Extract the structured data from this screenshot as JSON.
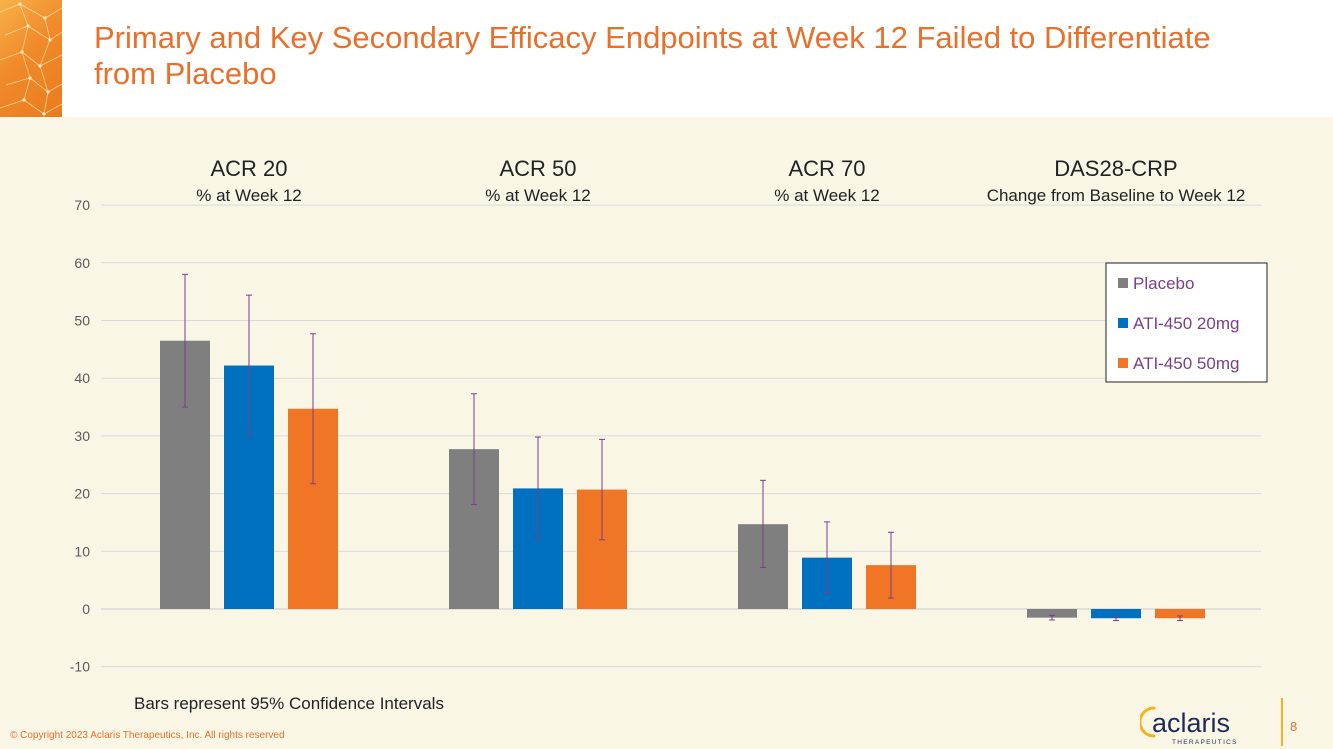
{
  "slide": {
    "title": "Primary and Key Secondary Efficacy Endpoints at Week 12 Failed to Differentiate from Placebo",
    "footnote": "Bars represent 95% Confidence Intervals",
    "copyright": "© Copyright 2023 Aclaris Therapeutics, Inc. All rights reserved",
    "page_number": "8",
    "logo": {
      "name": "aclaris",
      "tagline": "THERAPEUTICS"
    }
  },
  "colors": {
    "title": "#e8702a",
    "placebo": "#7f7f7f",
    "ati_20mg": "#0070c0",
    "ati_50mg": "#f07524",
    "error_bar": "#7b3f8c",
    "legend_text": "#7b3f8c",
    "gridline": "#d9d9d9",
    "background": "#faf6e6"
  },
  "chart_data": {
    "type": "bar",
    "categories": [
      {
        "title": "ACR 20",
        "subtitle": "% at Week 12"
      },
      {
        "title": "ACR 50",
        "subtitle": "% at Week 12"
      },
      {
        "title": "ACR 70",
        "subtitle": "% at Week 12"
      },
      {
        "title": "DAS28-CRP",
        "subtitle": "Change from Baseline to Week 12"
      }
    ],
    "series": [
      {
        "name": "Placebo",
        "color": "#7f7f7f",
        "values": [
          46.5,
          27.7,
          14.7,
          -1.5
        ],
        "ci_low": [
          35.0,
          18.1,
          7.2,
          -1.9
        ],
        "ci_high": [
          58.0,
          37.3,
          22.3,
          -1.1
        ]
      },
      {
        "name": "ATI-450 20mg",
        "color": "#0070c0",
        "values": [
          42.2,
          20.9,
          8.9,
          -1.6
        ],
        "ci_low": [
          30.0,
          12.0,
          2.7,
          -2.0
        ],
        "ci_high": [
          54.4,
          29.8,
          15.1,
          -1.2
        ]
      },
      {
        "name": "ATI-450 50mg",
        "color": "#f07524",
        "values": [
          34.7,
          20.7,
          7.6,
          -1.6
        ],
        "ci_low": [
          21.7,
          12.0,
          1.9,
          -2.0
        ],
        "ci_high": [
          47.7,
          29.4,
          13.3,
          -1.2
        ]
      }
    ],
    "ylim": [
      -10,
      70
    ],
    "yticks": [
      -10,
      0,
      10,
      20,
      30,
      40,
      50,
      60,
      70
    ],
    "grid": true,
    "legend": "right"
  }
}
